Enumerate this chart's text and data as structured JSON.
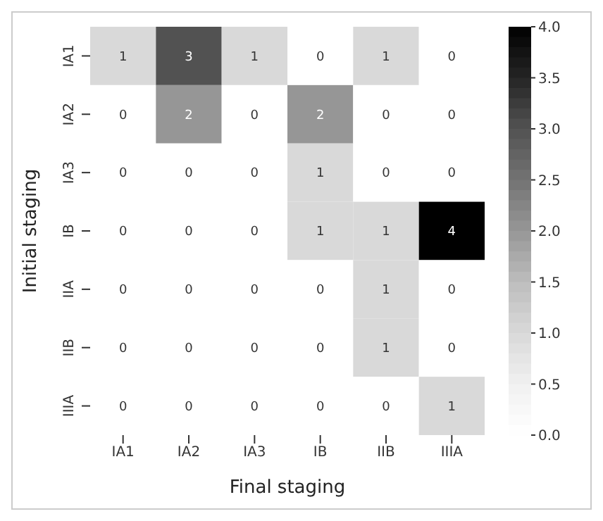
{
  "chart_data": {
    "type": "heatmap",
    "xlabel": "Final staging",
    "ylabel": "Initial staging",
    "categories": [
      "IA1",
      "IA2",
      "IA3",
      "IB",
      "IIB",
      "IIIA"
    ],
    "y_categories": [
      "IA1",
      "IA2",
      "IA3",
      "IB",
      "IIA",
      "IIB",
      "IIIA"
    ],
    "cells": [
      [
        1,
        3,
        1,
        0,
        1,
        0
      ],
      [
        0,
        2,
        0,
        2,
        0,
        0
      ],
      [
        0,
        0,
        0,
        1,
        0,
        0
      ],
      [
        0,
        0,
        0,
        1,
        1,
        4
      ],
      [
        0,
        0,
        0,
        0,
        1,
        0
      ],
      [
        0,
        0,
        0,
        0,
        1,
        0
      ],
      [
        0,
        0,
        0,
        0,
        0,
        1
      ]
    ],
    "clim": [
      0,
      4
    ],
    "cticks": [
      {
        "value": 0,
        "label": "0.0"
      },
      {
        "value": 0.5,
        "label": "0.5"
      },
      {
        "value": 1,
        "label": "1.0"
      },
      {
        "value": 1.5,
        "label": "1.5"
      },
      {
        "value": 2,
        "label": "2.0"
      },
      {
        "value": 2.5,
        "label": "2.5"
      },
      {
        "value": 3,
        "label": "3.0"
      },
      {
        "value": 3.5,
        "label": "3.5"
      },
      {
        "value": 4,
        "label": "4.0"
      }
    ],
    "data_labels": true
  }
}
